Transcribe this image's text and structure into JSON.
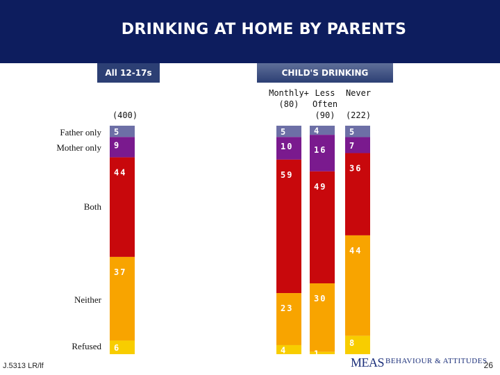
{
  "header": {
    "title": "DRINKING AT HOME BY PARENTS"
  },
  "pills": {
    "all": "All 12-17s",
    "child": "CHILD'S DRINKING"
  },
  "column_heads": {
    "all_base": "(400)",
    "monthly": "Monthly+",
    "monthly_base": "(80)",
    "less": "Less\nOften",
    "less_base": "(90)",
    "never": "Never",
    "never_base": "(222)"
  },
  "row_labels": {
    "father": "Father only",
    "mother": "Mother only",
    "both": "Both",
    "neither": "Neither",
    "refused": "Refused"
  },
  "footer": {
    "code": "J.5313 LR/lf",
    "page": "26",
    "logo_meas": "MEAS",
    "logo_ba": "BEHAVIOUR & ATTITUDES"
  },
  "colors": {
    "header_bg": "#0d1d5e",
    "father": "#6d6fa6",
    "mother": "#7a1a8e",
    "both": "#c8080c",
    "neither": "#f8a400",
    "refused": "#f8cd00"
  },
  "chart_data": {
    "type": "bar",
    "stacked": true,
    "normalized_percent": true,
    "categories": [
      "All 12-17s",
      "Monthly+",
      "Less Often",
      "Never"
    ],
    "bases": [
      "(400)",
      "(80)",
      "(90)",
      "(222)"
    ],
    "series": [
      {
        "name": "Father only",
        "values": [
          5,
          5,
          4,
          5
        ]
      },
      {
        "name": "Mother only",
        "values": [
          9,
          10,
          16,
          7
        ]
      },
      {
        "name": "Both",
        "values": [
          44,
          59,
          49,
          36
        ]
      },
      {
        "name": "Neither",
        "values": [
          37,
          23,
          30,
          44
        ]
      },
      {
        "name": "Refused",
        "values": [
          6,
          4,
          1,
          8
        ]
      }
    ]
  }
}
